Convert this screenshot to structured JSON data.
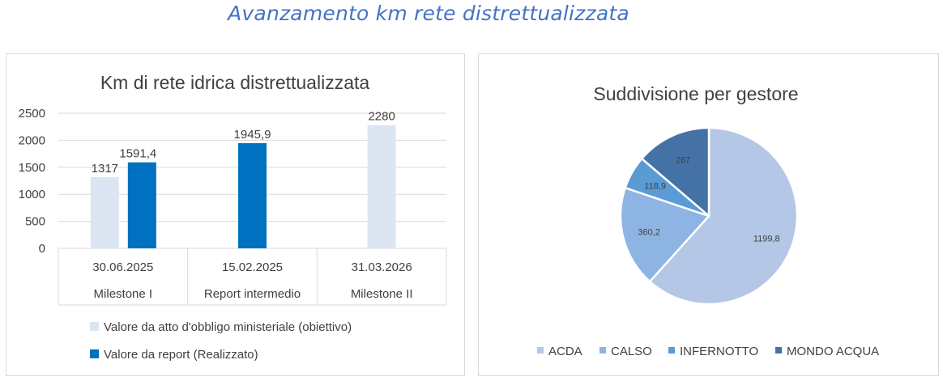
{
  "page_title": "Avanzamento km rete distrettualizzata",
  "colors": {
    "title": "#4472c4",
    "target": "#dce6f2",
    "actual": "#0070c0",
    "grid": "#d9d9d9",
    "text": "#404040",
    "pie": [
      "#b4c7e7",
      "#8eb4e3",
      "#5b9bd5",
      "#4472a6"
    ]
  },
  "chart_data": [
    {
      "type": "bar",
      "title": "Km di rete idrica distrettualizzata",
      "categories": [
        {
          "date": "30.06.2025",
          "group": "Milestone I"
        },
        {
          "date": "15.02.2025",
          "group": "Report intermedio"
        },
        {
          "date": "31.03.2026",
          "group": "Milestone II"
        }
      ],
      "series": [
        {
          "name": "Valore da atto d'obbligo ministeriale (obiettivo)",
          "values": [
            1317,
            null,
            2280
          ],
          "labels": [
            "1317",
            "",
            "2280"
          ],
          "color": "#dce6f2"
        },
        {
          "name": "Valore da report (Realizzato)",
          "values": [
            1591.4,
            1945.9,
            null
          ],
          "labels": [
            "1591,4",
            "1945,9",
            ""
          ],
          "color": "#0070c0"
        }
      ],
      "ylim": [
        0,
        2500
      ],
      "yticks": [
        "0",
        "500",
        "1000",
        "1500",
        "2000",
        "2500"
      ],
      "grid": true,
      "legend": "bottom"
    },
    {
      "type": "pie",
      "title": "Suddivisione per gestore",
      "slices": [
        {
          "label": "ACDA",
          "value": 1199.8,
          "text": "1199,8"
        },
        {
          "label": "CALSO",
          "value": 360.2,
          "text": "360,2"
        },
        {
          "label": "INFERNOTTO",
          "value": 118.9,
          "text": "118,9"
        },
        {
          "label": "MONDO  ACQUA",
          "value": 267,
          "text": "267"
        }
      ],
      "legend": "bottom"
    }
  ]
}
